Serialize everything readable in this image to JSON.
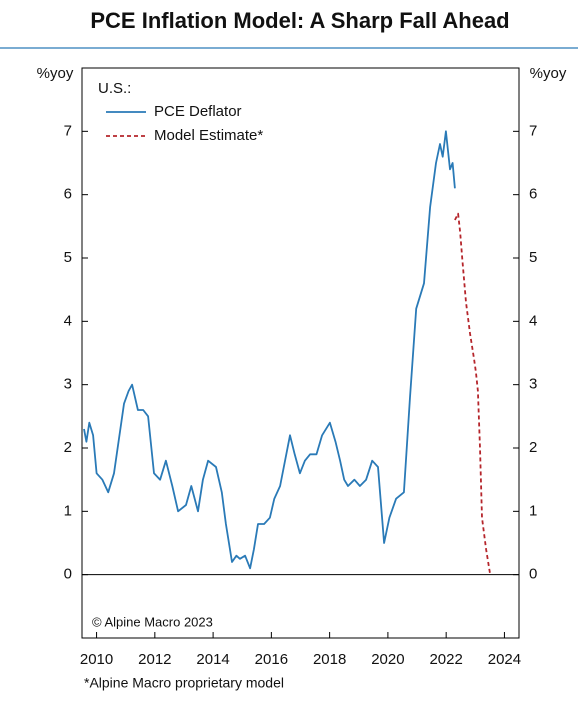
{
  "chart_data": {
    "type": "line",
    "title": "PCE Inflation Model: A Sharp Fall Ahead",
    "ylabel": "%yoy",
    "y2label": "%yoy",
    "legend_title": "U.S.:",
    "legend": "upper left",
    "annotation": "© Alpine Macro 2023",
    "footnote": "*Alpine Macro proprietary model",
    "xlim": [
      2009.5,
      2024.5
    ],
    "xticks": [
      2010,
      2012,
      2014,
      2016,
      2018,
      2020,
      2022,
      2024
    ],
    "ylim": [
      -1,
      8
    ],
    "yticks": [
      0,
      1,
      2,
      3,
      4,
      5,
      6,
      7
    ],
    "y2lim": [
      -1,
      8
    ],
    "y2ticks": [
      0,
      1,
      2,
      3,
      4,
      5,
      6,
      7
    ],
    "series": [
      {
        "name": "PCE Deflator",
        "color": "#2a7ab7",
        "dash": false,
        "x": [
          2009.57,
          2009.65,
          2009.75,
          2009.88,
          2010.0,
          2010.2,
          2010.4,
          2010.6,
          2010.94,
          2011.1,
          2011.22,
          2011.42,
          2011.6,
          2011.77,
          2011.97,
          2012.18,
          2012.38,
          2012.6,
          2012.8,
          2013.07,
          2013.25,
          2013.48,
          2013.65,
          2013.83,
          2014.1,
          2014.3,
          2014.44,
          2014.65,
          2014.8,
          2014.92,
          2015.1,
          2015.27,
          2015.4,
          2015.54,
          2015.75,
          2015.95,
          2016.1,
          2016.3,
          2016.64,
          2016.8,
          2016.98,
          2017.15,
          2017.33,
          2017.55,
          2017.74,
          2018.01,
          2018.2,
          2018.36,
          2018.5,
          2018.63,
          2018.85,
          2019.04,
          2019.25,
          2019.46,
          2019.66,
          2019.87,
          2020.05,
          2020.28,
          2020.55,
          2020.76,
          2020.97,
          2021.24,
          2021.45,
          2021.65,
          2021.79,
          2021.88,
          2021.99,
          2022.13,
          2022.22,
          2022.3
        ],
        "values": [
          2.3,
          2.1,
          2.4,
          2.2,
          1.6,
          1.5,
          1.3,
          1.6,
          2.7,
          2.9,
          3.0,
          2.6,
          2.6,
          2.5,
          1.6,
          1.5,
          1.8,
          1.4,
          1.0,
          1.1,
          1.4,
          1.0,
          1.5,
          1.8,
          1.7,
          1.3,
          0.8,
          0.2,
          0.3,
          0.25,
          0.3,
          0.1,
          0.4,
          0.8,
          0.8,
          0.9,
          1.2,
          1.4,
          2.2,
          1.9,
          1.6,
          1.8,
          1.9,
          1.9,
          2.2,
          2.4,
          2.1,
          1.8,
          1.5,
          1.4,
          1.5,
          1.4,
          1.5,
          1.8,
          1.7,
          0.5,
          0.9,
          1.2,
          1.3,
          2.8,
          4.2,
          4.6,
          5.8,
          6.5,
          6.8,
          6.6,
          7.0,
          6.4,
          6.5,
          6.1
        ]
      },
      {
        "name": "Model Estimate*",
        "color": "#b5252b",
        "dash": true,
        "x": [
          2022.3,
          2022.41,
          2022.48,
          2022.55,
          2022.68,
          2022.82,
          2022.96,
          2023.02,
          2023.09,
          2023.16,
          2023.23,
          2023.37,
          2023.51
        ],
        "values": [
          5.6,
          5.7,
          5.4,
          5.0,
          4.3,
          3.8,
          3.4,
          3.2,
          2.9,
          2.0,
          0.9,
          0.4,
          0.0
        ]
      }
    ]
  }
}
